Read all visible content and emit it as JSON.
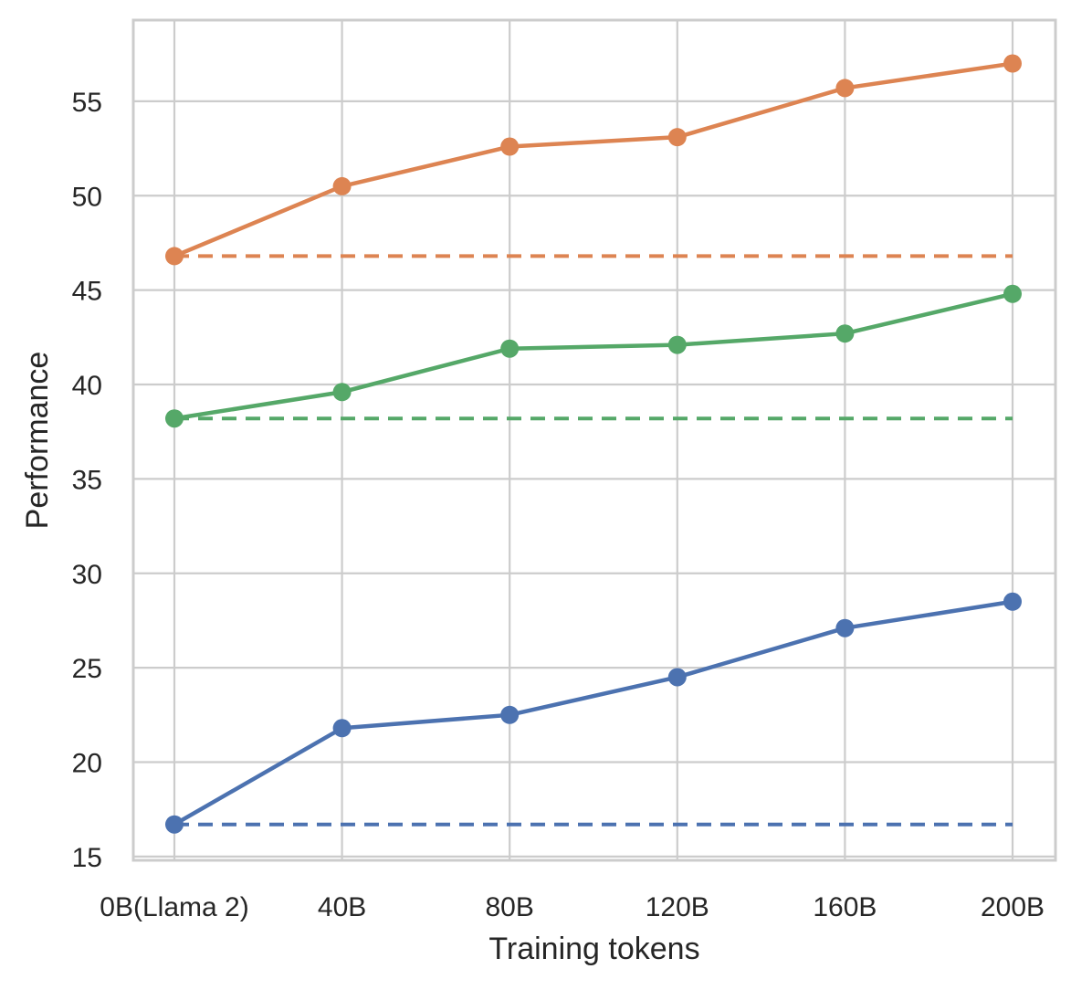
{
  "chart_data": {
    "type": "line",
    "title": "",
    "xlabel": "Training tokens",
    "ylabel": "Performance",
    "categories": [
      "0B(Llama 2)",
      "40B",
      "80B",
      "120B",
      "160B",
      "200B"
    ],
    "ylim": [
      14.8,
      59.3
    ],
    "yticks": [
      15,
      20,
      25,
      30,
      35,
      40,
      45,
      50,
      55
    ],
    "grid": true,
    "series": [
      {
        "name": "orange",
        "color": "#dd8452",
        "values": [
          46.8,
          50.5,
          52.6,
          53.1,
          55.7,
          57.0
        ],
        "baseline": 46.8
      },
      {
        "name": "green",
        "color": "#55a868",
        "values": [
          38.2,
          39.6,
          41.9,
          42.1,
          42.7,
          44.8
        ],
        "baseline": 38.2
      },
      {
        "name": "blue",
        "color": "#4c72b0",
        "values": [
          16.7,
          21.8,
          22.5,
          24.5,
          27.1,
          28.5
        ],
        "baseline": 16.7
      }
    ]
  }
}
